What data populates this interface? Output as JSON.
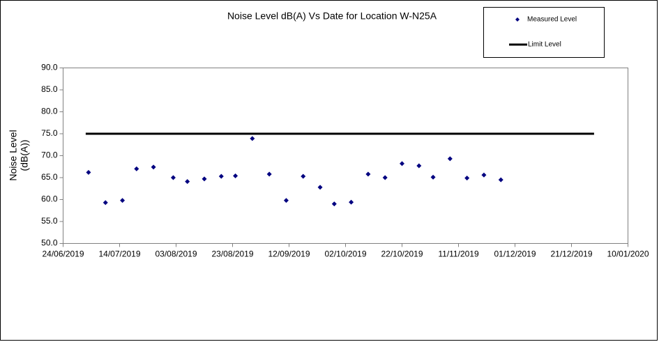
{
  "chart_data": {
    "type": "scatter",
    "title": "Noise Level dB(A) Vs Date for Location W-N25A",
    "ylabel": [
      "Noise Level",
      "(dB(A))"
    ],
    "xlim": [
      "2019-06-24",
      "2020-01-10"
    ],
    "xticks": [
      {
        "value": "2019-06-24",
        "label": "24/06/2019"
      },
      {
        "value": "2019-07-14",
        "label": "14/07/2019"
      },
      {
        "value": "2019-08-03",
        "label": "03/08/2019"
      },
      {
        "value": "2019-08-23",
        "label": "23/08/2019"
      },
      {
        "value": "2019-09-12",
        "label": "12/09/2019"
      },
      {
        "value": "2019-10-02",
        "label": "02/10/2019"
      },
      {
        "value": "2019-10-22",
        "label": "22/10/2019"
      },
      {
        "value": "2019-11-11",
        "label": "11/11/2019"
      },
      {
        "value": "2019-12-01",
        "label": "01/12/2019"
      },
      {
        "value": "2019-12-21",
        "label": "21/12/2019"
      },
      {
        "value": "2020-01-10",
        "label": "10/01/2020"
      }
    ],
    "ylim": [
      50,
      90
    ],
    "yticks": [
      {
        "value": 50,
        "label": "50.0"
      },
      {
        "value": 55,
        "label": "55.0"
      },
      {
        "value": 60,
        "label": "60.0"
      },
      {
        "value": 65,
        "label": "65.0"
      },
      {
        "value": 70,
        "label": "70.0"
      },
      {
        "value": 75,
        "label": "75.0"
      },
      {
        "value": 80,
        "label": "80.0"
      },
      {
        "value": 85,
        "label": "85.0"
      },
      {
        "value": 90,
        "label": "90.0"
      }
    ],
    "grid": false,
    "legend": "top-right",
    "series": [
      {
        "name": "Measured Level",
        "type": "scatter",
        "color": "#000080",
        "x": [
          "2019-07-03",
          "2019-07-09",
          "2019-07-15",
          "2019-07-20",
          "2019-07-26",
          "2019-08-02",
          "2019-08-07",
          "2019-08-13",
          "2019-08-19",
          "2019-08-24",
          "2019-08-30",
          "2019-09-05",
          "2019-09-11",
          "2019-09-17",
          "2019-09-23",
          "2019-09-28",
          "2019-10-04",
          "2019-10-10",
          "2019-10-16",
          "2019-10-22",
          "2019-10-28",
          "2019-11-02",
          "2019-11-08",
          "2019-11-14",
          "2019-11-20",
          "2019-11-26"
        ],
        "values": [
          66.2,
          59.3,
          59.8,
          67.0,
          67.4,
          65.0,
          64.1,
          64.7,
          65.3,
          65.4,
          73.9,
          65.8,
          59.8,
          65.3,
          62.8,
          59.0,
          59.4,
          65.8,
          65.0,
          68.2,
          67.7,
          65.1,
          69.3,
          64.9,
          65.6,
          64.5
        ]
      },
      {
        "name": "Limit Level",
        "type": "line",
        "color": "#000000",
        "x": [
          "2019-07-02",
          "2019-12-29"
        ],
        "values": [
          75,
          75
        ]
      }
    ]
  }
}
